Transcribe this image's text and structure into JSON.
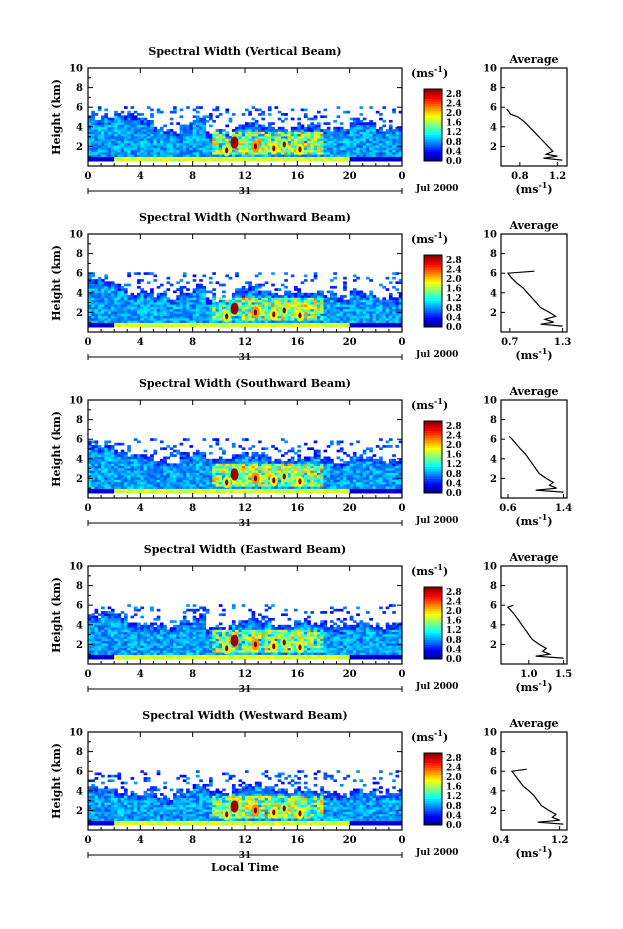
{
  "chart_data": [
    {
      "type": "heatmap",
      "title": "Spectral Width (Vertical Beam)",
      "ylabel": "Height (km)",
      "unit_label": "(ms",
      "unit_exp": "-1",
      "x_ticks": [
        "0",
        "4",
        "8",
        "12",
        "16",
        "20",
        "0"
      ],
      "x_range": [
        0,
        24
      ],
      "y_ticks": [
        "2",
        "4",
        "6",
        "8",
        "10"
      ],
      "y_range": [
        0,
        10
      ],
      "date_day": "31",
      "date_label": "Jul 2000",
      "colorbar_ticks": [
        "0.0",
        "0.4",
        "0.8",
        "1.2",
        "1.6",
        "2.0",
        "2.4",
        "2.8"
      ],
      "colorbar_range": [
        0,
        3.0
      ],
      "top_km": [
        4.8,
        5.0,
        5.2,
        4.9,
        4.6,
        3.6,
        3.4,
        4.0,
        4.8,
        3.5,
        3.3,
        3.9,
        4.3,
        4.0,
        3.7,
        3.8,
        4.1,
        3.9,
        3.6,
        3.8,
        4.6,
        4.2,
        3.6,
        3.9
      ],
      "average": {
        "title": "Average",
        "xlim": [
          0.6,
          1.3
        ],
        "x_ticks": [
          "0.8",
          "1.2"
        ],
        "y_ticks": [
          "2",
          "4",
          "6",
          "8",
          "10"
        ],
        "profile_heights": [
          0.6,
          0.8,
          1.0,
          1.2,
          1.5,
          2.0,
          2.5,
          3.0,
          3.5,
          4.0,
          4.5,
          5.0,
          5.3,
          5.6,
          5.8
        ],
        "profile_values": [
          1.25,
          1.05,
          1.2,
          1.08,
          1.15,
          1.1,
          1.05,
          1.0,
          0.95,
          0.9,
          0.85,
          0.78,
          0.7,
          0.68,
          0.66
        ]
      }
    },
    {
      "type": "heatmap",
      "title": "Spectral Width (Northward Beam)",
      "ylabel": "Height (km)",
      "unit_label": "(ms",
      "unit_exp": "-1",
      "x_ticks": [
        "0",
        "4",
        "8",
        "12",
        "16",
        "20",
        "0"
      ],
      "x_range": [
        0,
        24
      ],
      "y_ticks": [
        "2",
        "4",
        "6",
        "8",
        "10"
      ],
      "y_range": [
        0,
        10
      ],
      "date_day": "31",
      "date_label": "Jul 2000",
      "colorbar_ticks": [
        "0.0",
        "0.4",
        "0.8",
        "1.2",
        "1.6",
        "2.0",
        "2.4",
        "2.8"
      ],
      "colorbar_range": [
        0,
        3.0
      ],
      "top_km": [
        5.4,
        5.2,
        4.6,
        3.6,
        4.1,
        3.6,
        3.5,
        4.1,
        4.6,
        3.2,
        3.4,
        4.2,
        4.5,
        4.3,
        3.7,
        3.9,
        4.2,
        3.9,
        3.6,
        3.5,
        4.3,
        3.8,
        3.4,
        3.6
      ],
      "average": {
        "title": "Average",
        "xlim": [
          0.6,
          1.35
        ],
        "x_ticks": [
          "0.7",
          "1.3"
        ],
        "y_ticks": [
          "2",
          "4",
          "6",
          "8",
          "10"
        ],
        "profile_heights": [
          0.6,
          0.8,
          1.0,
          1.3,
          1.6,
          2.0,
          2.5,
          3.0,
          3.5,
          4.0,
          4.5,
          5.0,
          5.5,
          6.0,
          6.2
        ],
        "profile_values": [
          1.3,
          1.05,
          1.2,
          1.1,
          1.22,
          1.15,
          1.05,
          1.0,
          0.95,
          0.9,
          0.85,
          0.78,
          0.72,
          0.68,
          0.98
        ]
      }
    },
    {
      "type": "heatmap",
      "title": "Spectral Width (Southward Beam)",
      "ylabel": "Height (km)",
      "unit_label": "(ms",
      "unit_exp": "-1",
      "x_ticks": [
        "0",
        "4",
        "8",
        "12",
        "16",
        "20",
        "0"
      ],
      "x_range": [
        0,
        24
      ],
      "y_ticks": [
        "2",
        "4",
        "6",
        "8",
        "10"
      ],
      "y_range": [
        0,
        10
      ],
      "date_day": "31",
      "date_label": "Jul 2000",
      "colorbar_ticks": [
        "0.0",
        "0.4",
        "0.8",
        "1.2",
        "1.6",
        "2.0",
        "2.4",
        "2.8"
      ],
      "colorbar_range": [
        0,
        3.0
      ],
      "top_km": [
        5.4,
        5.3,
        4.7,
        4.2,
        4.3,
        3.9,
        3.6,
        4.2,
        4.7,
        3.9,
        3.8,
        4.3,
        4.5,
        4.2,
        3.8,
        3.9,
        4.1,
        4.0,
        3.6,
        3.6,
        4.3,
        3.9,
        3.6,
        3.7
      ],
      "average": {
        "title": "Average",
        "xlim": [
          0.5,
          1.45
        ],
        "x_ticks": [
          "0.6",
          "1.4"
        ],
        "y_ticks": [
          "2",
          "4",
          "6",
          "8",
          "10"
        ],
        "profile_heights": [
          0.6,
          0.8,
          1.0,
          1.3,
          1.6,
          2.0,
          2.5,
          3.0,
          3.5,
          4.0,
          4.5,
          5.0,
          5.5,
          6.0,
          6.3
        ],
        "profile_values": [
          1.4,
          1.0,
          1.3,
          1.2,
          1.25,
          1.15,
          1.05,
          1.0,
          0.95,
          0.9,
          0.85,
          0.78,
          0.72,
          0.66,
          0.62
        ]
      }
    },
    {
      "type": "heatmap",
      "title": "Spectral Width (Eastward Beam)",
      "ylabel": "Height (km)",
      "unit_label": "(ms",
      "unit_exp": "-1",
      "x_ticks": [
        "0",
        "4",
        "8",
        "12",
        "16",
        "20",
        "0"
      ],
      "x_range": [
        0,
        24
      ],
      "y_ticks": [
        "2",
        "4",
        "6",
        "8",
        "10"
      ],
      "y_range": [
        0,
        10
      ],
      "date_day": "31",
      "date_label": "Jul 2000",
      "colorbar_ticks": [
        "0.0",
        "0.4",
        "0.8",
        "1.2",
        "1.6",
        "2.0",
        "2.4",
        "2.8"
      ],
      "colorbar_range": [
        0,
        3.0
      ],
      "top_km": [
        4.8,
        5.2,
        4.9,
        4.0,
        3.9,
        3.8,
        3.6,
        4.2,
        4.7,
        3.7,
        3.5,
        4.2,
        4.6,
        4.3,
        3.8,
        3.9,
        4.3,
        4.0,
        3.6,
        3.7,
        4.2,
        3.9,
        3.6,
        3.8
      ],
      "average": {
        "title": "Average",
        "xlim": [
          0.6,
          1.55
        ],
        "x_ticks": [
          "1.0",
          "1.5"
        ],
        "y_ticks": [
          "2",
          "4",
          "6",
          "8",
          "10"
        ],
        "profile_heights": [
          0.6,
          0.8,
          1.0,
          1.3,
          1.6,
          2.0,
          2.5,
          3.0,
          3.5,
          4.0,
          4.5,
          5.0,
          5.5,
          5.8,
          6.0
        ],
        "profile_values": [
          1.5,
          1.1,
          1.3,
          1.2,
          1.25,
          1.15,
          1.05,
          1.0,
          0.95,
          0.9,
          0.85,
          0.8,
          0.74,
          0.7,
          0.78
        ]
      }
    },
    {
      "type": "heatmap",
      "title": "Spectral Width (Westward Beam)",
      "ylabel": "Height (km)",
      "unit_label": "(ms",
      "unit_exp": "-1",
      "x_ticks": [
        "0",
        "4",
        "8",
        "12",
        "16",
        "20",
        "0"
      ],
      "x_range": [
        0,
        24
      ],
      "y_ticks": [
        "2",
        "4",
        "6",
        "8",
        "10"
      ],
      "y_range": [
        0,
        10
      ],
      "date_day": "31",
      "date_label": "Jul 2000",
      "xlabel": "Local Time",
      "colorbar_ticks": [
        "0.0",
        "0.4",
        "0.8",
        "1.2",
        "1.6",
        "2.0",
        "2.4",
        "2.8"
      ],
      "colorbar_range": [
        0,
        3.0
      ],
      "top_km": [
        4.4,
        4.2,
        3.9,
        3.7,
        3.6,
        3.4,
        3.3,
        4.0,
        4.5,
        3.8,
        3.6,
        4.0,
        4.5,
        4.5,
        4.0,
        3.9,
        4.2,
        3.9,
        3.6,
        3.5,
        4.1,
        3.8,
        3.5,
        3.6
      ],
      "average": {
        "title": "Average",
        "xlim": [
          0.4,
          1.3
        ],
        "x_ticks": [
          "0.4",
          "1.2"
        ],
        "y_ticks": [
          "2",
          "4",
          "6",
          "8",
          "10"
        ],
        "profile_heights": [
          0.6,
          0.8,
          1.0,
          1.3,
          1.6,
          2.0,
          2.5,
          3.0,
          3.5,
          4.0,
          4.5,
          5.0,
          5.5,
          6.0,
          6.2
        ],
        "profile_values": [
          1.25,
          0.9,
          1.2,
          1.1,
          1.15,
          1.05,
          0.95,
          0.9,
          0.85,
          0.78,
          0.7,
          0.65,
          0.6,
          0.55,
          0.75
        ]
      }
    }
  ]
}
